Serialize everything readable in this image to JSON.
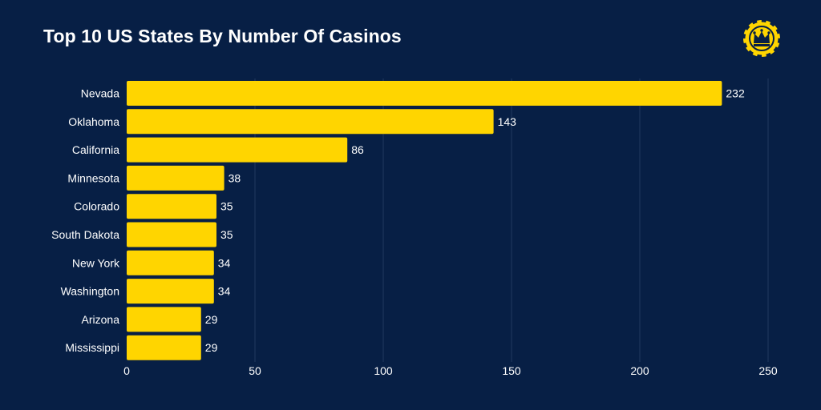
{
  "chart_data": {
    "type": "bar",
    "orientation": "horizontal",
    "title": "Top 10 US States By Number Of Casinos",
    "categories": [
      "Nevada",
      "Oklahoma",
      "California",
      "Minnesota",
      "Colorado",
      "South Dakota",
      "New York",
      "Washington",
      "Arizona",
      "Mississippi"
    ],
    "values": [
      232,
      143,
      86,
      38,
      35,
      35,
      34,
      34,
      29,
      29
    ],
    "xlim": [
      0,
      250
    ],
    "xticks": [
      0,
      50,
      100,
      150,
      200,
      250
    ],
    "grid": true,
    "data_labels": true,
    "colors": {
      "background": "#071f45",
      "bar": "#ffd500",
      "text": "#ffffff",
      "grid": "#203a5f"
    }
  },
  "logo": {
    "icon": "crown-chip-icon"
  }
}
